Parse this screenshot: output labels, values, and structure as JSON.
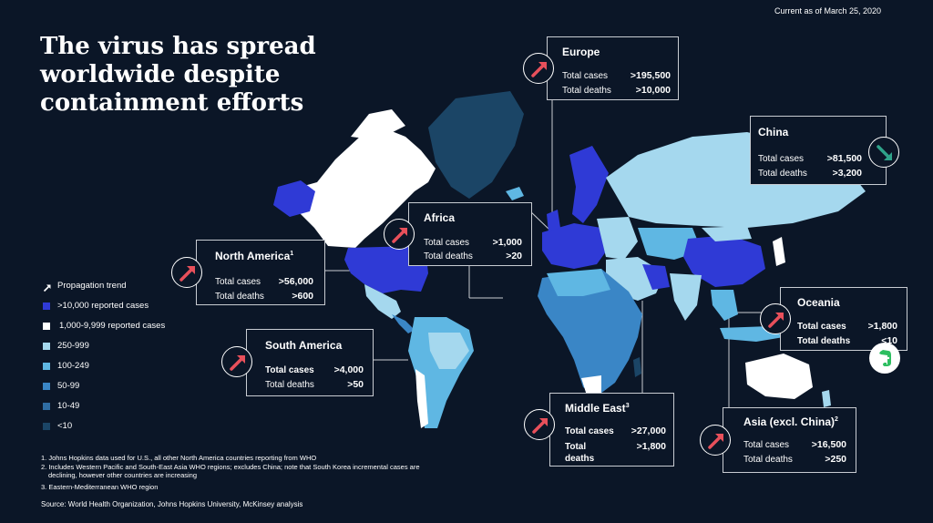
{
  "date_note": "Current as of March 25, 2020",
  "title_lines": [
    "The virus has spread",
    "worldwide despite",
    "containment efforts"
  ],
  "colors": {
    "background": "#0b1627",
    "over_10000": "#2f3ad6",
    "1000_9999": "#ffffff",
    "250_999": "#a5d8ee",
    "100_249": "#5fb7e3",
    "50_99": "#3a86c6",
    "10_49": "#2f6da3",
    "under_10": "#1b4566",
    "trend_up": "#e8505b",
    "trend_down": "#2fa38a"
  },
  "legend": {
    "trend_label": "Propagation trend",
    "items": [
      {
        "label": ">10,000 reported cases",
        "color": "#2f3ad6"
      },
      {
        "label": "1,000-9,999 reported cases",
        "color": "#ffffff"
      },
      {
        "label": "250-999",
        "color": "#a5d8ee"
      },
      {
        "label": "100-249",
        "color": "#5fb7e3"
      },
      {
        "label": "50-99",
        "color": "#3a86c6"
      },
      {
        "label": "10-49",
        "color": "#2f6da3"
      },
      {
        "label": "<10",
        "color": "#1b4566"
      }
    ]
  },
  "regions": {
    "europe": {
      "name": "Europe",
      "cases_label": "Total cases",
      "deaths_label": "Total deaths",
      "cases": ">195,500",
      "deaths": ">10,000",
      "trend": "up",
      "trend_icon": "arrow-up-right-icon"
    },
    "china": {
      "name": "China",
      "cases_label": "Total cases",
      "deaths_label": "Total deaths",
      "cases": ">81,500",
      "deaths": ">3,200",
      "trend": "down",
      "trend_icon": "arrow-down-right-icon"
    },
    "africa": {
      "name": "Africa",
      "cases_label": "Total cases",
      "deaths_label": "Total deaths",
      "cases": ">1,000",
      "deaths": ">20",
      "trend": "up",
      "trend_icon": "arrow-up-right-icon"
    },
    "north_america": {
      "name": "North America",
      "sup": "1",
      "cases_label": "Total cases",
      "deaths_label": "Total deaths",
      "cases": ">56,000",
      "deaths": ">600",
      "trend": "up",
      "trend_icon": "arrow-up-right-icon"
    },
    "south_america": {
      "name": "South America",
      "cases_label": "Total cases",
      "deaths_label": "Total deaths",
      "cases": ">4,000",
      "deaths": ">50",
      "trend": "up",
      "trend_icon": "arrow-up-right-icon"
    },
    "oceania": {
      "name": "Oceania",
      "cases_label": "Total cases",
      "deaths_label": "Total deaths",
      "cases": ">1,800",
      "deaths": "<10",
      "trend": "up",
      "trend_icon": "arrow-up-right-icon"
    },
    "middle_east": {
      "name": "Middle East",
      "sup": "3",
      "cases_label": "Total cases",
      "deaths_label_line1": "Total",
      "deaths_label_line2": "deaths",
      "cases": ">27,000",
      "deaths": ">1,800",
      "trend": "up",
      "trend_icon": "arrow-up-right-icon"
    },
    "asia": {
      "name": "Asia (excl. China)",
      "sup": "2",
      "cases_label": "Total cases",
      "deaths_label": "Total deaths",
      "cases": ">16,500",
      "deaths": ">250",
      "trend": "up",
      "trend_icon": "arrow-up-right-icon"
    }
  },
  "footnotes": [
    "1. Johns Hopkins data used for U.S., all other North America countries reporting from WHO",
    "2. Includes Western Pacific and South-East Asia WHO regions; excludes China; note that South Korea incremental cases are",
    "declining, however other countries are increasing",
    "3. Eastern-Mediterranean WHO region"
  ],
  "source": "Source: World Health Organization, Johns Hopkins University, McKinsey analysis",
  "overlay_icon": "evernote-icon"
}
